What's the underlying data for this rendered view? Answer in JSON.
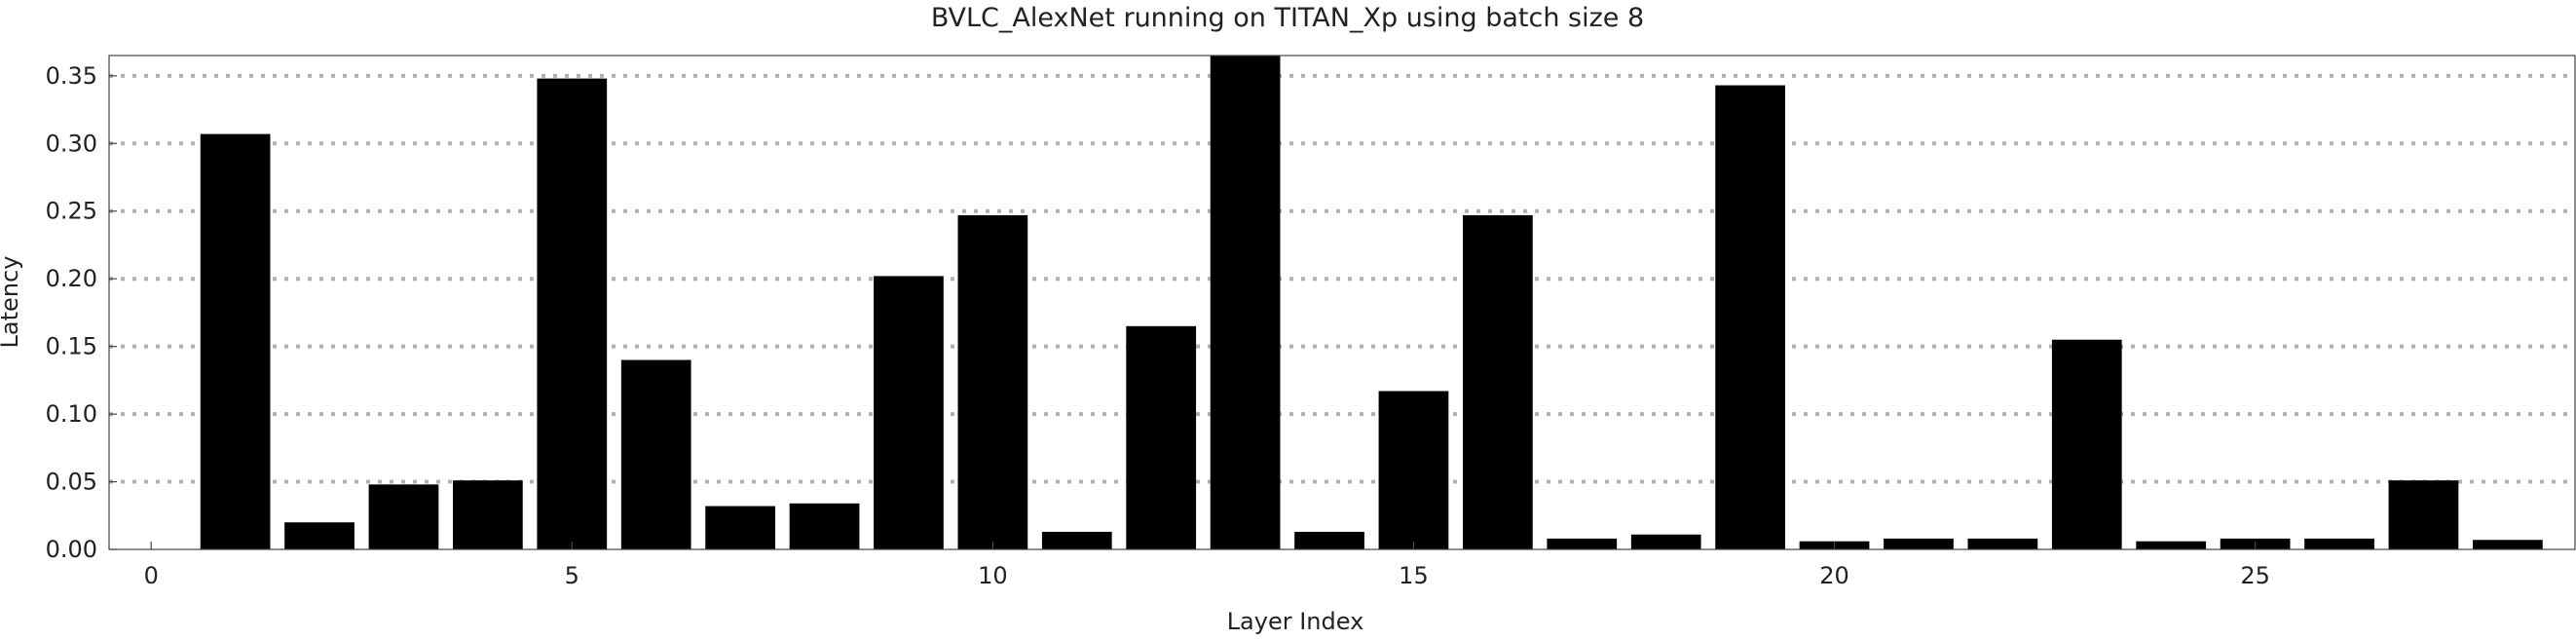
{
  "chart_data": {
    "type": "bar",
    "title": "BVLC_AlexNet running on TITAN_Xp using batch size 8",
    "xlabel": "Layer Index",
    "ylabel": "Latency",
    "xlim": [
      -0.5,
      28.8
    ],
    "ylim": [
      0.0,
      0.365
    ],
    "x_ticks": [
      0,
      5,
      10,
      15,
      20,
      25
    ],
    "x_tick_labels": [
      "0",
      "5",
      "10",
      "15",
      "20",
      "25"
    ],
    "y_ticks": [
      0.0,
      0.05,
      0.1,
      0.15,
      0.2,
      0.25,
      0.3,
      0.35
    ],
    "y_tick_labels": [
      "0.00",
      "0.05",
      "0.10",
      "0.15",
      "0.20",
      "0.25",
      "0.30",
      "0.35"
    ],
    "grid": "horizontal-dotted",
    "bar_color": "#000000",
    "grid_color": "#b0b0b0",
    "x": [
      1,
      2,
      3,
      4,
      5,
      6,
      7,
      8,
      9,
      10,
      11,
      12,
      13,
      14,
      15,
      16,
      17,
      18,
      19,
      20,
      21,
      22,
      23,
      24,
      25,
      26,
      27,
      28
    ],
    "values": [
      0.307,
      0.02,
      0.048,
      0.051,
      0.348,
      0.14,
      0.032,
      0.034,
      0.202,
      0.247,
      0.013,
      0.165,
      0.365,
      0.013,
      0.117,
      0.247,
      0.008,
      0.011,
      0.343,
      0.006,
      0.008,
      0.008,
      0.155,
      0.006,
      0.008,
      0.008,
      0.051,
      0.007
    ]
  }
}
